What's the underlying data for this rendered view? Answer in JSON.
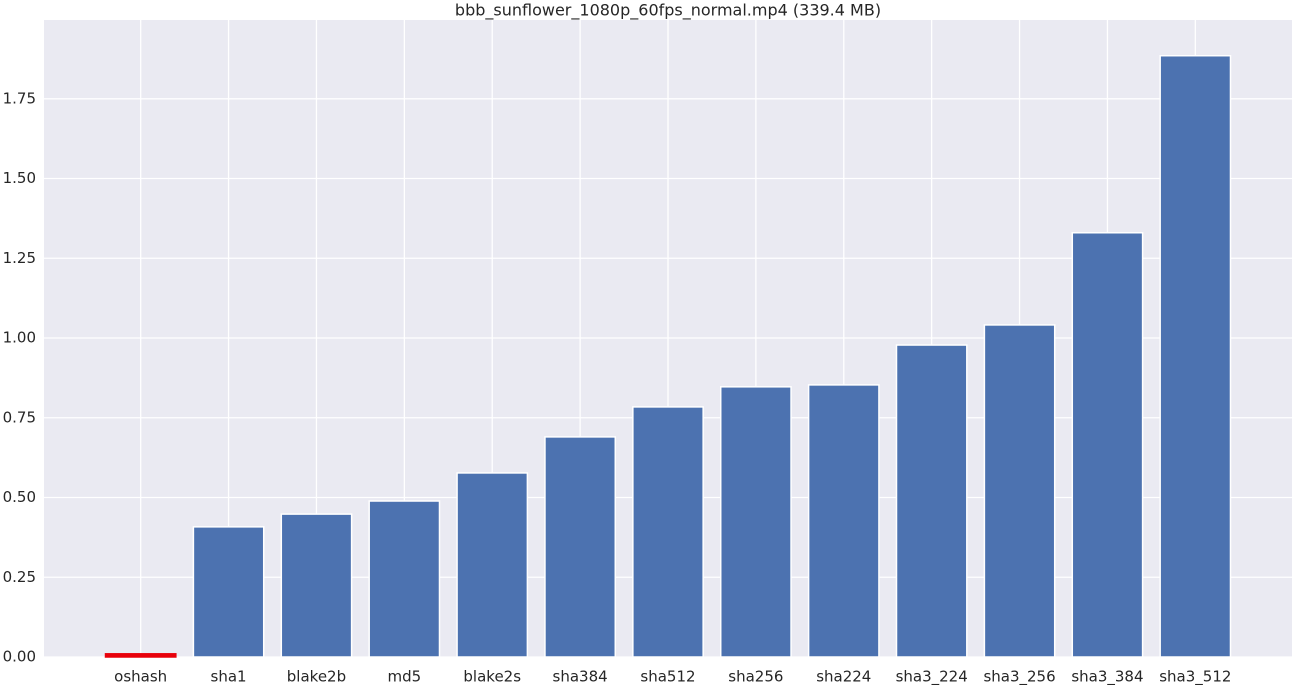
{
  "chart_data": {
    "type": "bar",
    "title": "bbb_sunflower_1080p_60fps_normal.mp4 (339.4 MB)",
    "categories": [
      "oshash",
      "sha1",
      "blake2b",
      "md5",
      "blake2s",
      "sha384",
      "sha512",
      "sha256",
      "sha224",
      "sha3_224",
      "sha3_256",
      "sha3_384",
      "sha3_512"
    ],
    "values": [
      0.01,
      0.408,
      0.448,
      0.489,
      0.577,
      0.69,
      0.784,
      0.847,
      0.853,
      0.978,
      1.041,
      1.33,
      1.885
    ],
    "colors": [
      "#e8000b",
      "#4c72b0",
      "#4c72b0",
      "#4c72b0",
      "#4c72b0",
      "#4c72b0",
      "#4c72b0",
      "#4c72b0",
      "#4c72b0",
      "#4c72b0",
      "#4c72b0",
      "#4c72b0",
      "#4c72b0"
    ],
    "ylim": [
      0,
      1.997
    ],
    "yticks": [
      {
        "value": 0,
        "label": "0.00"
      },
      {
        "value": 0.25,
        "label": "0.25"
      },
      {
        "value": 0.5,
        "label": "0.50"
      },
      {
        "value": 0.75,
        "label": "0.75"
      },
      {
        "value": 1,
        "label": "1.00"
      },
      {
        "value": 1.25,
        "label": "1.25"
      },
      {
        "value": 1.5,
        "label": "1.50"
      },
      {
        "value": 1.75,
        "label": "1.75"
      }
    ],
    "grid": true
  }
}
